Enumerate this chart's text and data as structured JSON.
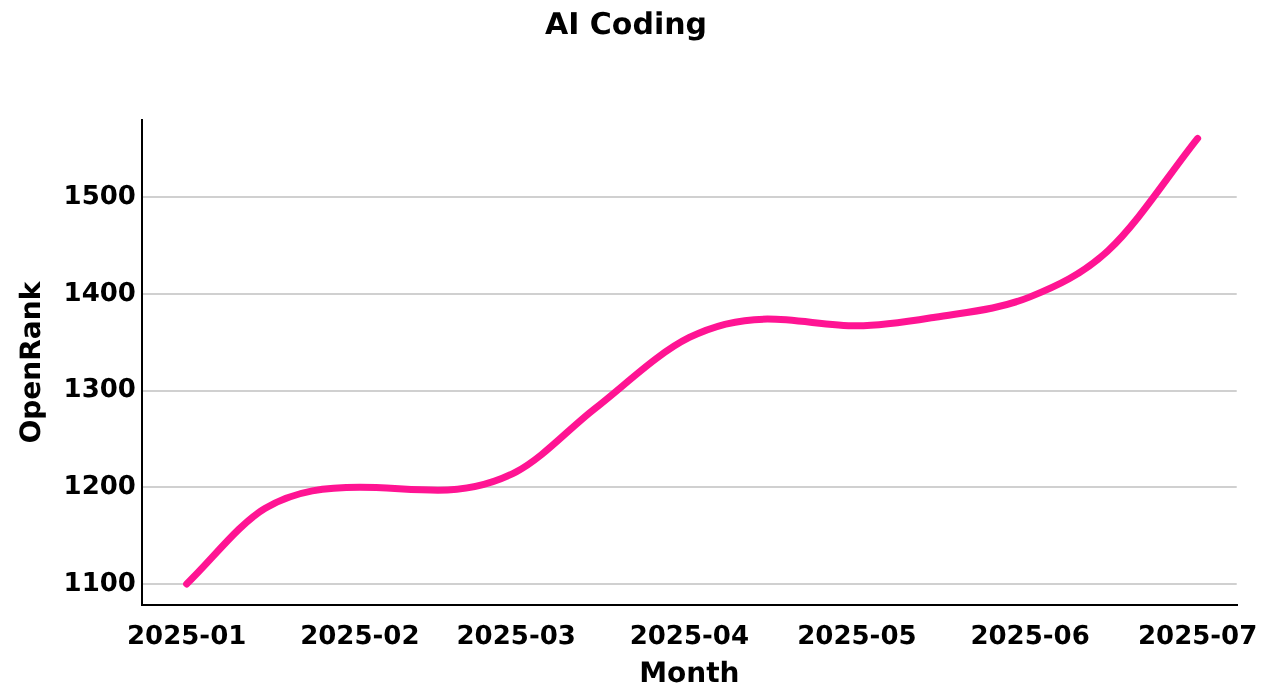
{
  "chart_data": {
    "type": "line",
    "title": "AI Coding",
    "xlabel": "Month",
    "ylabel": "OpenRank",
    "x": [
      "2025-01-01",
      "2025-01-15",
      "2025-02-01",
      "2025-02-15",
      "2025-03-01",
      "2025-03-15",
      "2025-04-01",
      "2025-04-15",
      "2025-05-01",
      "2025-05-15",
      "2025-06-01",
      "2025-06-15",
      "2025-07-01"
    ],
    "series": [
      {
        "color": "#ff1493",
        "values": [
          1100,
          1178,
          1200,
          1197,
          1216,
          1281,
          1355,
          1374,
          1367,
          1376,
          1397,
          1445,
          1561
        ]
      }
    ],
    "xlim": [
      "2024-12-24",
      "2025-07-08"
    ],
    "xticks": [
      "2025-01",
      "2025-02",
      "2025-03",
      "2025-04",
      "2025-05",
      "2025-06",
      "2025-07"
    ],
    "ylim": [
      1078,
      1580
    ],
    "yticks": [
      1100,
      1200,
      1300,
      1400,
      1500
    ],
    "grid": "y",
    "legend": false,
    "marker": "none",
    "line_style": "solid"
  }
}
